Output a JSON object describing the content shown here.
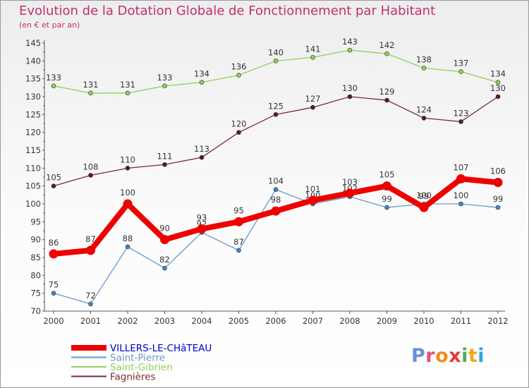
{
  "header": {
    "title": "Evolution de la Dotation Globale de Fonctionnement par Habitant",
    "subtitle": "(en € et par an)"
  },
  "brand": {
    "text": "Proxiti",
    "letters": [
      "P",
      "r",
      "o",
      "x",
      "i",
      "t",
      "i"
    ],
    "colors": [
      "#6a8fd6",
      "#e94e77",
      "#f28c1e",
      "#e53935",
      "#4caf50",
      "#f2a81e",
      "#2aa6e0"
    ]
  },
  "chart_data": {
    "type": "line",
    "title": "Evolution de la Dotation Globale de Fonctionnement par Habitant",
    "subtitle": "(en € et par an)",
    "xlabel": "",
    "ylabel": "",
    "ylim": [
      70,
      145
    ],
    "yticks": [
      70,
      75,
      80,
      85,
      90,
      95,
      100,
      105,
      110,
      115,
      120,
      125,
      130,
      135,
      140,
      145
    ],
    "categories": [
      "2000",
      "2001",
      "2002",
      "2003",
      "2004",
      "2005",
      "2006",
      "2007",
      "2008",
      "2009",
      "2010",
      "2011",
      "2012"
    ],
    "legend_position": "bottom-left",
    "grid": false,
    "series": [
      {
        "name": "Saint-Gibrien",
        "color": "#8fd05a",
        "marker": "#8fd05a",
        "bold": false,
        "values": [
          133,
          131,
          131,
          133,
          134,
          136,
          140,
          141,
          143,
          142,
          138,
          137,
          134
        ],
        "labels": [
          "133",
          "131",
          "131",
          "133",
          "134",
          "136",
          "140",
          "141",
          "143",
          "142",
          "138",
          "137",
          "134"
        ]
      },
      {
        "name": "Fagnières",
        "color": "#7a2a2f",
        "marker": "#5a1a1f",
        "bold": false,
        "values": [
          105,
          108,
          110,
          111,
          113,
          120,
          125,
          127,
          130,
          129,
          124,
          123,
          130
        ],
        "labels": [
          "105",
          "108",
          "110",
          "111",
          "113",
          "120",
          "125",
          "127",
          "130",
          "129",
          "124",
          "123",
          "130"
        ]
      },
      {
        "name": "Saint-Pierre",
        "color": "#6a9ac8",
        "marker": "#3f86cc",
        "bold": false,
        "values": [
          75,
          72,
          88,
          82,
          92,
          87,
          104,
          100,
          102,
          99,
          100,
          100,
          99
        ],
        "labels": [
          "75",
          "72",
          "88",
          "82",
          "92",
          "87",
          "104",
          "100",
          "102",
          "99",
          "100",
          "100",
          "99"
        ]
      },
      {
        "name": "VILLERS-LE-CHâTEAU",
        "color": "#ee0000",
        "marker": "#ee0000",
        "bold": true,
        "values": [
          86,
          87,
          100,
          90,
          93,
          95,
          98,
          101,
          103,
          105,
          99,
          107,
          106
        ],
        "labels": [
          "86",
          "87",
          "100",
          "90",
          "93",
          "95",
          "98",
          "101",
          "103",
          "105",
          "99",
          "107",
          "106"
        ]
      }
    ],
    "legend_order": [
      "VILLERS-LE-CHâTEAU",
      "Saint-Pierre",
      "Saint-Gibrien",
      "Fagnières"
    ],
    "legend_colors": [
      "#0000cc",
      "#6a9ac8",
      "#8fd05a",
      "#7a2a2f"
    ]
  }
}
